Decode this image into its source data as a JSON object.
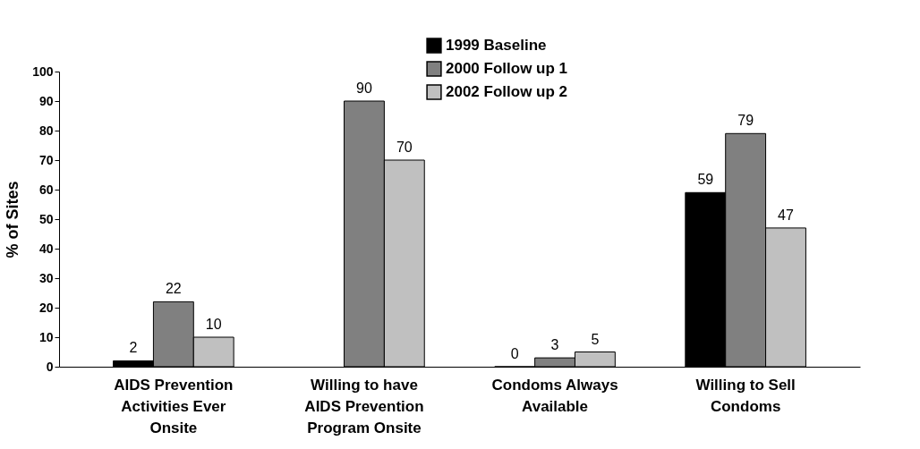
{
  "chart_data": {
    "type": "bar",
    "ylabel": "% of Sites",
    "categories": [
      "AIDS Prevention Activities Ever Onsite",
      "Willing to have AIDS Prevention Program Onsite",
      "Condoms Always Available",
      "Willing to Sell Condoms"
    ],
    "series": [
      {
        "name": "1999 Baseline",
        "color": "#000000",
        "values": [
          2,
          null,
          0,
          59
        ]
      },
      {
        "name": "2000 Follow up 1",
        "color": "#808080",
        "values": [
          22,
          90,
          3,
          79
        ]
      },
      {
        "name": "2002 Follow up 2",
        "color": "#c0c0c0",
        "values": [
          10,
          70,
          5,
          47
        ]
      }
    ],
    "ylim": [
      0,
      100
    ],
    "yticks": [
      0,
      10,
      20,
      30,
      40,
      50,
      60,
      70,
      80,
      90,
      100
    ],
    "grid": false,
    "legend": "top right",
    "data_labels": true
  }
}
